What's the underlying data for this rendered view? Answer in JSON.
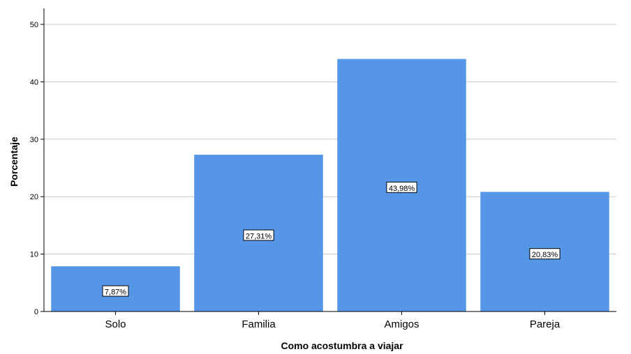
{
  "chart_data": {
    "type": "bar",
    "categories": [
      "Solo",
      "Familia",
      "Amigos",
      "Pareja"
    ],
    "values": [
      7.87,
      27.31,
      43.98,
      20.83
    ],
    "data_labels": [
      "7,87%",
      "27,31%",
      "43,98%",
      "20,83%"
    ],
    "xlabel": "Como acostumbra a viajar",
    "ylabel": "Porcentaje",
    "ylim": [
      0,
      50
    ],
    "yticks": [
      0,
      10,
      20,
      30,
      40,
      50
    ],
    "grid": true,
    "bar_color": "#5596e6"
  }
}
